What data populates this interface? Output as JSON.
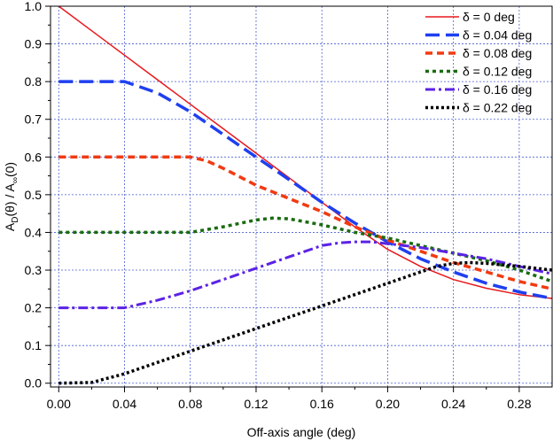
{
  "chart_data": {
    "type": "line",
    "xlabel": "Off-axis angle (deg)",
    "ylabel_parts": {
      "a1": "A",
      "sub1": "D",
      "mid": "(θ) / A",
      "sub2": "∞",
      "end": "(0)"
    },
    "xlim": [
      -0.005,
      0.3
    ],
    "ylim": [
      -0.01,
      1.0
    ],
    "x_ticks": [
      0.0,
      0.04,
      0.08,
      0.12,
      0.16,
      0.2,
      0.24,
      0.28
    ],
    "x_tick_labels": [
      "0.00",
      "0.04",
      "0.08",
      "0.12",
      "0.16",
      "0.20",
      "0.24",
      "0.28"
    ],
    "y_ticks": [
      0.0,
      0.1,
      0.2,
      0.3,
      0.4,
      0.5,
      0.6,
      0.7,
      0.8,
      0.9,
      1.0
    ],
    "y_tick_labels": [
      "0.0",
      "0.1",
      "0.2",
      "0.3",
      "0.4",
      "0.5",
      "0.6",
      "0.7",
      "0.8",
      "0.9",
      "1.0"
    ],
    "grid": true,
    "legend_position": "top-right",
    "series": [
      {
        "name": "δ = 0 deg",
        "color": "#e8181c",
        "dash": "",
        "width": 1.5,
        "x": [
          0.0,
          0.02,
          0.04,
          0.06,
          0.08,
          0.1,
          0.12,
          0.14,
          0.16,
          0.18,
          0.2,
          0.22,
          0.24,
          0.26,
          0.28,
          0.3
        ],
        "y": [
          1.0,
          0.935,
          0.87,
          0.805,
          0.74,
          0.675,
          0.61,
          0.545,
          0.48,
          0.415,
          0.355,
          0.31,
          0.275,
          0.252,
          0.235,
          0.225
        ]
      },
      {
        "name": "δ = 0.04 deg",
        "color": "#1e3ff0",
        "dash": "16,7",
        "width": 3.5,
        "x": [
          0.0,
          0.02,
          0.04,
          0.06,
          0.08,
          0.1,
          0.12,
          0.14,
          0.16,
          0.18,
          0.2,
          0.22,
          0.24,
          0.26,
          0.28,
          0.3
        ],
        "y": [
          0.8,
          0.8,
          0.8,
          0.77,
          0.72,
          0.66,
          0.6,
          0.54,
          0.48,
          0.425,
          0.375,
          0.33,
          0.295,
          0.265,
          0.242,
          0.225
        ]
      },
      {
        "name": "δ = 0.08 deg",
        "color": "#f23a10",
        "dash": "8,5",
        "width": 3.5,
        "x": [
          0.0,
          0.02,
          0.04,
          0.06,
          0.08,
          0.09,
          0.1,
          0.12,
          0.14,
          0.16,
          0.18,
          0.2,
          0.22,
          0.24,
          0.26,
          0.28,
          0.3
        ],
        "y": [
          0.6,
          0.6,
          0.6,
          0.6,
          0.6,
          0.59,
          0.57,
          0.525,
          0.49,
          0.455,
          0.415,
          0.38,
          0.35,
          0.32,
          0.295,
          0.27,
          0.25
        ]
      },
      {
        "name": "δ = 0.12 deg",
        "color": "#1a6b10",
        "dash": "4,4",
        "width": 3.5,
        "x": [
          0.0,
          0.02,
          0.04,
          0.06,
          0.08,
          0.1,
          0.12,
          0.13,
          0.14,
          0.16,
          0.18,
          0.2,
          0.22,
          0.24,
          0.26,
          0.28,
          0.3
        ],
        "y": [
          0.4,
          0.4,
          0.4,
          0.4,
          0.4,
          0.415,
          0.433,
          0.438,
          0.436,
          0.42,
          0.4,
          0.385,
          0.365,
          0.345,
          0.325,
          0.3,
          0.27
        ]
      },
      {
        "name": "δ = 0.16 deg",
        "color": "#5b22e6",
        "dash": "11,4,3,4",
        "width": 3.0,
        "x": [
          0.0,
          0.02,
          0.04,
          0.06,
          0.08,
          0.1,
          0.12,
          0.14,
          0.16,
          0.17,
          0.18,
          0.19,
          0.2,
          0.22,
          0.24,
          0.26,
          0.28,
          0.3
        ],
        "y": [
          0.2,
          0.2,
          0.2,
          0.22,
          0.245,
          0.275,
          0.305,
          0.335,
          0.365,
          0.372,
          0.375,
          0.375,
          0.37,
          0.36,
          0.345,
          0.33,
          0.31,
          0.29
        ]
      },
      {
        "name": "δ = 0.22 deg",
        "color": "#000000",
        "dash": "3,3",
        "width": 3.5,
        "x": [
          0.0,
          0.02,
          0.04,
          0.06,
          0.08,
          0.1,
          0.12,
          0.14,
          0.16,
          0.18,
          0.2,
          0.22,
          0.23,
          0.24,
          0.25,
          0.26,
          0.28,
          0.3
        ],
        "y": [
          0.0,
          0.002,
          0.025,
          0.055,
          0.085,
          0.115,
          0.145,
          0.175,
          0.205,
          0.235,
          0.265,
          0.295,
          0.31,
          0.318,
          0.32,
          0.318,
          0.31,
          0.3
        ]
      }
    ]
  }
}
